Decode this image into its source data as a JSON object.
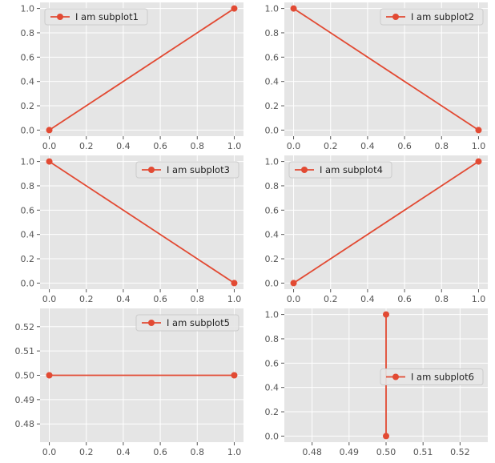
{
  "colors": {
    "axes_bg": "#e5e5e5",
    "grid": "#ffffff",
    "line": "#e24a33",
    "tick_text": "#555555",
    "legend_bg": "#e5e5e5",
    "legend_border": "#cccccc"
  },
  "chart_data": [
    {
      "type": "line",
      "grid": true,
      "legend_position": "upper-left",
      "xlim": [
        -0.05,
        1.05
      ],
      "ylim": [
        -0.05,
        1.05
      ],
      "xticks": [
        0.0,
        0.2,
        0.4,
        0.6,
        0.8,
        1.0
      ],
      "yticks": [
        0.0,
        0.2,
        0.4,
        0.6,
        0.8,
        1.0
      ],
      "x_tick_labels": [
        "0.0",
        "0.2",
        "0.4",
        "0.6",
        "0.8",
        "1.0"
      ],
      "y_tick_labels": [
        "0.0",
        "0.2",
        "0.4",
        "0.6",
        "0.8",
        "1.0"
      ],
      "series": [
        {
          "name": "I am subplot1",
          "x": [
            0,
            1
          ],
          "y": [
            0,
            1
          ]
        }
      ]
    },
    {
      "type": "line",
      "grid": true,
      "legend_position": "upper-right",
      "xlim": [
        -0.05,
        1.05
      ],
      "ylim": [
        -0.05,
        1.05
      ],
      "xticks": [
        0.0,
        0.2,
        0.4,
        0.6,
        0.8,
        1.0
      ],
      "yticks": [
        0.0,
        0.2,
        0.4,
        0.6,
        0.8,
        1.0
      ],
      "x_tick_labels": [
        "0.0",
        "0.2",
        "0.4",
        "0.6",
        "0.8",
        "1.0"
      ],
      "y_tick_labels": [
        "0.0",
        "0.2",
        "0.4",
        "0.6",
        "0.8",
        "1.0"
      ],
      "series": [
        {
          "name": "I am subplot2",
          "x": [
            0,
            1
          ],
          "y": [
            1,
            0
          ]
        }
      ]
    },
    {
      "type": "line",
      "grid": true,
      "legend_position": "upper-right",
      "xlim": [
        -0.05,
        1.05
      ],
      "ylim": [
        -0.05,
        1.05
      ],
      "xticks": [
        0.0,
        0.2,
        0.4,
        0.6,
        0.8,
        1.0
      ],
      "yticks": [
        0.0,
        0.2,
        0.4,
        0.6,
        0.8,
        1.0
      ],
      "x_tick_labels": [
        "0.0",
        "0.2",
        "0.4",
        "0.6",
        "0.8",
        "1.0"
      ],
      "y_tick_labels": [
        "0.0",
        "0.2",
        "0.4",
        "0.6",
        "0.8",
        "1.0"
      ],
      "series": [
        {
          "name": "I am subplot3",
          "x": [
            0,
            1
          ],
          "y": [
            1,
            0
          ]
        }
      ]
    },
    {
      "type": "line",
      "grid": true,
      "legend_position": "upper-left",
      "xlim": [
        -0.05,
        1.05
      ],
      "ylim": [
        -0.05,
        1.05
      ],
      "xticks": [
        0.0,
        0.2,
        0.4,
        0.6,
        0.8,
        1.0
      ],
      "yticks": [
        0.0,
        0.2,
        0.4,
        0.6,
        0.8,
        1.0
      ],
      "x_tick_labels": [
        "0.0",
        "0.2",
        "0.4",
        "0.6",
        "0.8",
        "1.0"
      ],
      "y_tick_labels": [
        "0.0",
        "0.2",
        "0.4",
        "0.6",
        "0.8",
        "1.0"
      ],
      "series": [
        {
          "name": "I am subplot4",
          "x": [
            0,
            1
          ],
          "y": [
            0,
            1
          ]
        }
      ]
    },
    {
      "type": "line",
      "grid": true,
      "legend_position": "upper-right",
      "xlim": [
        -0.05,
        1.05
      ],
      "ylim": [
        0.4725,
        0.5275
      ],
      "xticks": [
        0.0,
        0.2,
        0.4,
        0.6,
        0.8,
        1.0
      ],
      "yticks": [
        0.48,
        0.49,
        0.5,
        0.51,
        0.52
      ],
      "x_tick_labels": [
        "0.0",
        "0.2",
        "0.4",
        "0.6",
        "0.8",
        "1.0"
      ],
      "y_tick_labels": [
        "0.48",
        "0.49",
        "0.50",
        "0.51",
        "0.52"
      ],
      "series": [
        {
          "name": "I am subplot5",
          "x": [
            0,
            1
          ],
          "y": [
            0.5,
            0.5
          ]
        }
      ]
    },
    {
      "type": "line",
      "grid": true,
      "legend_position": "center-right",
      "xlim": [
        0.4725,
        0.5275
      ],
      "ylim": [
        -0.05,
        1.05
      ],
      "xticks": [
        0.48,
        0.49,
        0.5,
        0.51,
        0.52
      ],
      "yticks": [
        0.0,
        0.2,
        0.4,
        0.6,
        0.8,
        1.0
      ],
      "x_tick_labels": [
        "0.48",
        "0.49",
        "0.50",
        "0.51",
        "0.52"
      ],
      "y_tick_labels": [
        "0.0",
        "0.2",
        "0.4",
        "0.6",
        "0.8",
        "1.0"
      ],
      "series": [
        {
          "name": "I am subplot6",
          "x": [
            0.5,
            0.5
          ],
          "y": [
            0,
            1
          ]
        }
      ]
    }
  ]
}
